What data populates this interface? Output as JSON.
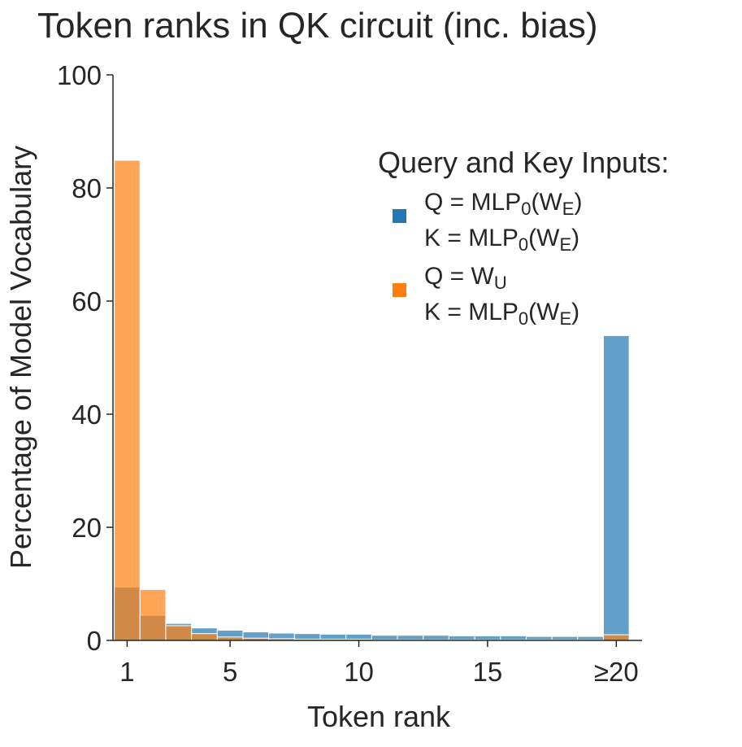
{
  "chart_data": {
    "type": "bar",
    "title": "Token ranks in QK circuit (inc. bias)",
    "xlabel": "Token rank",
    "ylabel": "Percentage of Model Vocabulary",
    "ylim": [
      0,
      100
    ],
    "yticks": [
      0,
      20,
      40,
      60,
      80,
      100
    ],
    "xlim": [
      0.45,
      21.0
    ],
    "xticks": [
      {
        "value": 1,
        "label": "1"
      },
      {
        "value": 5,
        "label": "5"
      },
      {
        "value": 10,
        "label": "10"
      },
      {
        "value": 15,
        "label": "15"
      },
      {
        "value": 20,
        "label": "≥20"
      }
    ],
    "x": [
      1,
      2,
      3,
      4,
      5,
      6,
      7,
      8,
      9,
      10,
      11,
      12,
      13,
      14,
      15,
      16,
      17,
      18,
      19,
      20
    ],
    "series": [
      {
        "name_parts": [
          [
            {
              "t": "Q = MLP"
            },
            {
              "t": "0",
              "sub": true
            },
            {
              "t": "(W"
            },
            {
              "t": "E",
              "sub": true
            },
            {
              "t": ")"
            }
          ],
          [
            {
              "t": "K = MLP"
            },
            {
              "t": "0",
              "sub": true
            },
            {
              "t": "(W"
            },
            {
              "t": "E",
              "sub": true
            },
            {
              "t": ")"
            }
          ]
        ],
        "color": "#1f77b4",
        "values": [
          9.4,
          4.4,
          3.0,
          2.2,
          1.8,
          1.5,
          1.3,
          1.2,
          1.1,
          1.1,
          0.9,
          0.9,
          0.9,
          0.8,
          0.8,
          0.8,
          0.7,
          0.7,
          0.7,
          53.9
        ]
      },
      {
        "name_parts": [
          [
            {
              "t": "Q = W"
            },
            {
              "t": "U",
              "sub": true
            }
          ],
          [
            {
              "t": "K = MLP"
            },
            {
              "t": "0",
              "sub": true
            },
            {
              "t": "(W"
            },
            {
              "t": "E",
              "sub": true
            },
            {
              "t": ")"
            }
          ]
        ],
        "color": "#ff7f0e",
        "values": [
          84.9,
          9.0,
          2.6,
          1.2,
          0.6,
          0.4,
          0.3,
          0.2,
          0.2,
          0.2,
          0.1,
          0.1,
          0.1,
          0.1,
          0.1,
          0.1,
          0.1,
          0.1,
          0.1,
          1.0
        ]
      }
    ],
    "legend": {
      "title": "Query and Key Inputs:",
      "placement": "upper-right"
    },
    "grid": false
  }
}
